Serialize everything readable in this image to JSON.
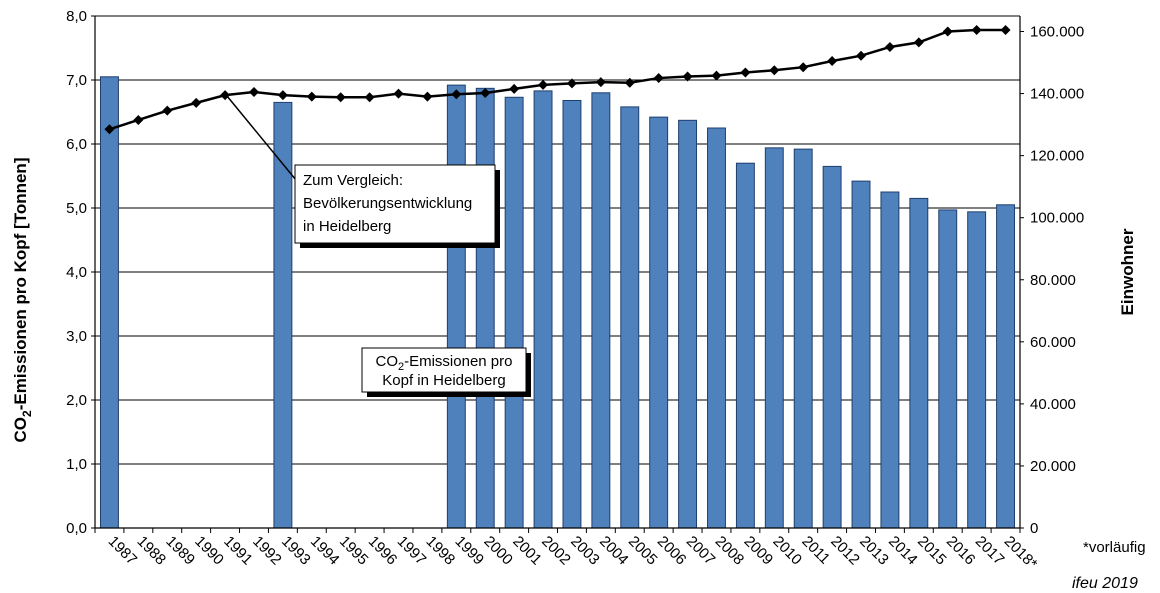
{
  "chart_data": {
    "type": "bar",
    "title": "",
    "years": [
      "1987",
      "1988",
      "1989",
      "1990",
      "1991",
      "1992",
      "1993",
      "1994",
      "1995",
      "1996",
      "1997",
      "1998",
      "1999",
      "2000",
      "2001",
      "2002",
      "2003",
      "2004",
      "2005",
      "2006",
      "2007",
      "2008",
      "2009",
      "2010",
      "2011",
      "2012",
      "2013",
      "2014",
      "2015",
      "2016",
      "2017",
      "2018*"
    ],
    "series": [
      {
        "name": "CO₂-Emissionen pro Kopf in Heidelberg",
        "kind": "bar",
        "axis": "left",
        "values": [
          7.05,
          null,
          null,
          null,
          null,
          null,
          6.65,
          null,
          null,
          null,
          null,
          null,
          6.92,
          6.87,
          6.73,
          6.83,
          6.68,
          6.8,
          6.58,
          6.42,
          6.37,
          6.25,
          5.7,
          5.94,
          5.92,
          5.65,
          5.42,
          5.25,
          5.15,
          4.97,
          4.94,
          5.05
        ]
      },
      {
        "name": "Bevölkerungsentwicklung in Heidelberg",
        "kind": "line",
        "axis": "right",
        "values": [
          128500,
          131500,
          134500,
          137000,
          139500,
          140500,
          139500,
          139000,
          138800,
          138800,
          140000,
          139000,
          139800,
          140200,
          141500,
          142800,
          143300,
          143700,
          143500,
          145000,
          145500,
          145800,
          146800,
          147500,
          148500,
          150500,
          152200,
          155000,
          156500,
          160000,
          160500,
          160500
        ]
      }
    ],
    "ylabel_left_main": "CO",
    "ylabel_left_sub": "2",
    "ylabel_left_rest": "-Emissionen pro Kopf [Tonnen]",
    "ylabel_right": "Einwohner",
    "ylim_left": [
      0,
      8
    ],
    "ylim_right": [
      0,
      165000
    ],
    "yticks_left": [
      "0,0",
      "1,0",
      "2,0",
      "3,0",
      "4,0",
      "5,0",
      "6,0",
      "7,0",
      "8,0"
    ],
    "yticks_right": [
      "0",
      "20.000",
      "40.000",
      "60.000",
      "80.000",
      "100.000",
      "120.000",
      "140.000",
      "160.000"
    ],
    "yticks_right_values": [
      0,
      20000,
      40000,
      60000,
      80000,
      100000,
      120000,
      140000,
      160000
    ],
    "grid": true,
    "colors": {
      "bar_fill": "#4f81bd",
      "bar_stroke": "#1f3f6e",
      "line": "#000000",
      "grid": "#000000"
    },
    "annotations": {
      "population_callout": [
        "Zum Vergleich:",
        "Bevölkerungsentwicklung",
        "in Heidelberg"
      ],
      "co2_callout_line1_main": "CO",
      "co2_callout_line1_sub": "2",
      "co2_callout_line1_rest": "-Emissionen pro",
      "co2_callout_line2": "Kopf in Heidelberg"
    },
    "footnote": "*vorläufig",
    "credit": "ifeu 2019"
  }
}
